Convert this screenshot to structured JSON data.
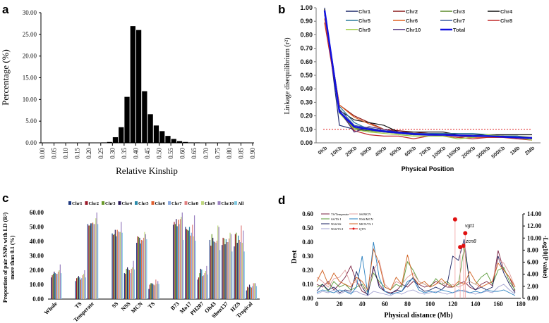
{
  "chart_data": [
    {
      "panel": "a",
      "type": "bar",
      "xlabel": "Relative Kinship",
      "ylabel": "Percentage (%)",
      "ylim": [
        0,
        30
      ],
      "yticks": [
        "0.00",
        "5.00",
        "10.00",
        "15.00",
        "20.00",
        "25.00",
        "30.00"
      ],
      "xticks": [
        "0.00",
        "0.05",
        "0.10",
        "0.15",
        "0.20",
        "0.25",
        "0.30",
        "0.35",
        "0.40",
        "0.45",
        "0.50",
        "0.55",
        "0.60",
        "0.65",
        "0.70",
        "0.75",
        "0.80",
        "0.85",
        "0.90"
      ],
      "bin_width": 0.025,
      "bins": [
        0.25,
        0.275,
        0.3,
        0.325,
        0.35,
        0.375,
        0.4,
        0.425,
        0.45,
        0.475,
        0.5,
        0.525,
        0.55,
        0.575,
        0.6,
        0.625,
        0.65
      ],
      "values": [
        0.1,
        0.2,
        1.3,
        3.6,
        10.6,
        26.9,
        26.0,
        11.9,
        6.6,
        4.0,
        2.7,
        1.6,
        0.9,
        0.4,
        0.2,
        0.1,
        0.1
      ]
    },
    {
      "panel": "b",
      "type": "line",
      "xlabel": "Physical Position",
      "ylabel": "Linkage disequilibrium (r²)",
      "ylim": [
        0,
        1
      ],
      "yticks": [
        "0.00",
        "0.10",
        "0.20",
        "0.30",
        "0.40",
        "0.50",
        "0.60",
        "0.70",
        "0.80",
        "0.90",
        "1.00"
      ],
      "categories": [
        "0Kb",
        "10Kb",
        "20Kb",
        "30Kb",
        "40Kb",
        "50Kb",
        "60Kb",
        "70Kb",
        "100Kb",
        "150Kb",
        "200Kb",
        "300Kb",
        "500Kb",
        "1Mb",
        "2Mb"
      ],
      "threshold": 0.1,
      "series": [
        {
          "name": "Chr1",
          "color": "#1f2a6b",
          "values": [
            1.0,
            0.13,
            0.1,
            0.09,
            0.08,
            0.07,
            0.06,
            0.06,
            0.06,
            0.05,
            0.05,
            0.05,
            0.05,
            0.04,
            0.04
          ]
        },
        {
          "name": "Chr2",
          "color": "#8b1a1a",
          "values": [
            0.95,
            0.28,
            0.2,
            0.15,
            0.1,
            0.09,
            0.08,
            0.07,
            0.07,
            0.06,
            0.05,
            0.05,
            0.05,
            0.04,
            0.03
          ]
        },
        {
          "name": "Chr3",
          "color": "#5a8a2a",
          "values": [
            0.96,
            0.22,
            0.11,
            0.09,
            0.08,
            0.07,
            0.06,
            0.06,
            0.05,
            0.04,
            0.05,
            0.05,
            0.05,
            0.05,
            0.04
          ]
        },
        {
          "name": "Chr4",
          "color": "#111111",
          "values": [
            0.99,
            0.24,
            0.17,
            0.15,
            0.13,
            0.08,
            0.08,
            0.08,
            0.08,
            0.06,
            0.06,
            0.06,
            0.06,
            0.06,
            0.06
          ]
        },
        {
          "name": "Chr5",
          "color": "#2a7a9a",
          "values": [
            0.97,
            0.27,
            0.15,
            0.1,
            0.09,
            0.08,
            0.07,
            0.07,
            0.07,
            0.07,
            0.07,
            0.06,
            0.05,
            0.05,
            0.03
          ]
        },
        {
          "name": "Chr6",
          "color": "#e06020",
          "values": [
            0.92,
            0.28,
            0.19,
            0.14,
            0.1,
            0.08,
            0.07,
            0.06,
            0.06,
            0.05,
            0.04,
            0.04,
            0.04,
            0.04,
            0.03
          ]
        },
        {
          "name": "Chr7",
          "color": "#3a5aa0",
          "values": [
            0.98,
            0.25,
            0.13,
            0.11,
            0.09,
            0.08,
            0.07,
            0.07,
            0.06,
            0.06,
            0.06,
            0.05,
            0.05,
            0.04,
            0.04
          ]
        },
        {
          "name": "Chr8",
          "color": "#c02828",
          "values": [
            0.89,
            0.24,
            0.09,
            0.06,
            0.05,
            0.05,
            0.03,
            0.05,
            0.05,
            0.04,
            0.03,
            0.04,
            0.04,
            0.03,
            0.02
          ]
        },
        {
          "name": "Chr9",
          "color": "#9acb3a",
          "values": [
            0.97,
            0.22,
            0.1,
            0.08,
            0.07,
            0.06,
            0.05,
            0.05,
            0.05,
            0.03,
            0.04,
            0.06,
            0.05,
            0.04,
            0.02
          ]
        },
        {
          "name": "Chr10",
          "color": "#4a2a7a",
          "values": [
            0.98,
            0.24,
            0.08,
            0.12,
            0.1,
            0.08,
            0.07,
            0.06,
            0.06,
            0.06,
            0.05,
            0.05,
            0.05,
            0.04,
            0.04
          ]
        },
        {
          "name": "Total",
          "color": "#1010e0",
          "values": [
            0.98,
            0.23,
            0.12,
            0.1,
            0.085,
            0.075,
            0.065,
            0.06,
            0.06,
            0.055,
            0.05,
            0.05,
            0.045,
            0.04,
            0.035
          ]
        }
      ]
    },
    {
      "panel": "c",
      "type": "bar",
      "ylabel_line1": "Proportion of pair SNPs with LD (R²)",
      "ylabel_line2": "more than 0.1 (%)",
      "ylim": [
        0,
        60
      ],
      "yticks": [
        "0.00",
        "10.00",
        "20.00",
        "30.00",
        "40.00",
        "50.00",
        "60.00"
      ],
      "categories": [
        "Whole",
        "TS",
        "Temperate",
        "SS",
        "NSS",
        "MCN",
        "TS",
        "B73",
        "Mo17",
        "PH207",
        "Oh43",
        "Shen137",
        "HZS",
        "Tropical"
      ],
      "series": [
        {
          "name": "Chr1",
          "color": "#1f3a80",
          "values": [
            15,
            12.5,
            52,
            45.5,
            18,
            39,
            7,
            51.5,
            50,
            13.5,
            41,
            37.5,
            36.5,
            6
          ]
        },
        {
          "name": "Chr2",
          "color": "#9a1a2a",
          "values": [
            16.5,
            14.5,
            51,
            44.5,
            17.5,
            43.5,
            10,
            53.5,
            48.5,
            15,
            37,
            42.5,
            45,
            8.5
          ]
        },
        {
          "name": "Chr3",
          "color": "#6a9a2a",
          "values": [
            17.5,
            15,
            51,
            45,
            21,
            43,
            11,
            52,
            48,
            18,
            45,
            42,
            46,
            8
          ]
        },
        {
          "name": "Chr4",
          "color": "#2a1a5a",
          "values": [
            19,
            16,
            52.5,
            48,
            22,
            42.5,
            11,
            55.5,
            47.5,
            21,
            42.5,
            38,
            39,
            10
          ]
        },
        {
          "name": "Chr5",
          "color": "#2a8aaa",
          "values": [
            18,
            15,
            52.5,
            43.5,
            20.5,
            38.5,
            10.5,
            50.5,
            50,
            20.5,
            40,
            41.5,
            44,
            8.5
          ]
        },
        {
          "name": "Chr6",
          "color": "#e06030",
          "values": [
            17.5,
            13.5,
            53,
            48,
            20,
            41,
            10,
            55,
            44,
            16,
            39.5,
            39.5,
            41,
            8
          ]
        },
        {
          "name": "Chr7",
          "color": "#8aaae0",
          "values": [
            17.5,
            14.5,
            52,
            47,
            18,
            40.5,
            9.5,
            52,
            46,
            16.5,
            39,
            39.5,
            39.5,
            9
          ]
        },
        {
          "name": "Chr8",
          "color": "#e08080",
          "values": [
            19,
            16.5,
            52,
            46.5,
            21,
            42.5,
            13.5,
            55.5,
            51.5,
            18,
            40.5,
            42,
            51,
            11
          ]
        },
        {
          "name": "Chr9",
          "color": "#c0d880",
          "values": [
            20,
            17.5,
            56,
            46.5,
            22,
            46.5,
            10.5,
            57,
            43.5,
            19.5,
            51,
            46,
            39,
            11
          ]
        },
        {
          "name": "Chr10",
          "color": "#9a80c0",
          "values": [
            24,
            20,
            60,
            53.5,
            26.5,
            45,
            12.5,
            60,
            58,
            23,
            50,
            45,
            47.5,
            11
          ]
        },
        {
          "name": "All",
          "color": "#80c8e0",
          "values": [
            18,
            15,
            52,
            46,
            20.5,
            41.5,
            10.5,
            41,
            40.5,
            17,
            34,
            33,
            33,
            9
          ]
        }
      ]
    },
    {
      "panel": "d",
      "type": "line",
      "xlabel": "Physical distance (Mb)",
      "ylabel_left": "Dest",
      "ylabel_right": "-Log10(P value)",
      "xlim": [
        0,
        180
      ],
      "ylim_left": [
        0,
        0.6
      ],
      "ylim_right": [
        0,
        14
      ],
      "xticks": [
        "0",
        "20",
        "40",
        "60",
        "80",
        "100",
        "120",
        "140",
        "160",
        "180"
      ],
      "yticks_left": [
        "0.00",
        "0.10",
        "0.20",
        "0.30",
        "0.40",
        "0.50",
        "0.60"
      ],
      "yticks_right": [
        "0.00",
        "2.00",
        "4.00",
        "6.00",
        "8.00",
        "10.00",
        "12.00",
        "14.00"
      ],
      "x": [
        0,
        5,
        10,
        15,
        20,
        25,
        30,
        35,
        40,
        45,
        50,
        55,
        60,
        65,
        70,
        75,
        80,
        85,
        90,
        95,
        100,
        105,
        110,
        115,
        120,
        125,
        130,
        135,
        140,
        145,
        150,
        155,
        160,
        165,
        170,
        175
      ],
      "series": [
        {
          "name": "TS/Temperate",
          "color": "#7a2040",
          "values": [
            0.1,
            0.08,
            0.12,
            0.06,
            0.1,
            0.15,
            0.23,
            0.12,
            0.05,
            0.03,
            0.22,
            0.1,
            0.05,
            0.04,
            0.05,
            0.1,
            0.08,
            0.12,
            0.1,
            0.08,
            0.09,
            0.12,
            0.1,
            0.08,
            0.08,
            0.1,
            0.12,
            0.08,
            0.06,
            0.1,
            0.12,
            0.09,
            0.34,
            0.2,
            0.15,
            0.05
          ]
        },
        {
          "name": "SS/TS I",
          "color": "#5a9a3a",
          "values": [
            0.08,
            0.1,
            0.05,
            0.12,
            0.08,
            0.1,
            0.06,
            0.08,
            0.1,
            0.04,
            0.18,
            0.12,
            0.08,
            0.06,
            0.1,
            0.08,
            0.26,
            0.2,
            0.12,
            0.1,
            0.08,
            0.14,
            0.1,
            0.12,
            0.08,
            0.1,
            0.36,
            0.12,
            0.1,
            0.15,
            0.18,
            0.1,
            0.2,
            0.22,
            0.12,
            0.06
          ]
        },
        {
          "name": "NSS/SS",
          "color": "#1a2060",
          "values": [
            0.05,
            0.1,
            0.06,
            0.08,
            0.04,
            0.06,
            0.05,
            0.19,
            0.08,
            0.02,
            0.23,
            0.08,
            0.05,
            0.03,
            0.06,
            0.05,
            0.1,
            0.15,
            0.08,
            0.05,
            0.06,
            0.08,
            0.06,
            0.1,
            0.3,
            0.27,
            0.42,
            0.1,
            0.06,
            0.08,
            0.06,
            0.08,
            0.3,
            0.18,
            0.1,
            0.04
          ]
        },
        {
          "name": "NSS/TS I",
          "color": "#a0a0d0",
          "values": [
            0.03,
            0.05,
            0.04,
            0.06,
            0.03,
            0.05,
            0.04,
            0.05,
            0.03,
            0.02,
            0.05,
            0.04,
            0.03,
            0.02,
            0.04,
            0.03,
            0.05,
            0.06,
            0.04,
            0.03,
            0.04,
            0.05,
            0.04,
            0.03,
            0.04,
            0.05,
            0.06,
            0.04,
            0.03,
            0.04,
            0.05,
            0.04,
            0.08,
            0.1,
            0.06,
            0.03
          ]
        },
        {
          "name": "SS/MCN",
          "color": "#e0a0a0",
          "values": [
            0.15,
            0.12,
            0.08,
            0.14,
            0.15,
            0.2,
            0.1,
            0.12,
            0.08,
            0.05,
            0.2,
            0.27,
            0.1,
            0.06,
            0.12,
            0.1,
            0.15,
            0.18,
            0.12,
            0.1,
            0.08,
            0.1,
            0.12,
            0.08,
            0.1,
            0.08,
            0.1,
            0.12,
            0.1,
            0.08,
            0.1,
            0.12,
            0.28,
            0.25,
            0.18,
            0.08
          ]
        },
        {
          "name": "NSS/MCN",
          "color": "#2a80c0",
          "values": [
            0.04,
            0.06,
            0.05,
            0.04,
            0.06,
            0.05,
            0.03,
            0.08,
            0.3,
            0.03,
            0.4,
            0.15,
            0.05,
            0.03,
            0.04,
            0.05,
            0.12,
            0.14,
            0.06,
            0.04,
            0.05,
            0.04,
            0.06,
            0.05,
            0.04,
            0.06,
            0.05,
            0.04,
            0.05,
            0.04,
            0.06,
            0.05,
            0.05,
            0.06,
            0.04,
            0.02
          ]
        },
        {
          "name": "MCN/TS I",
          "color": "#d06020",
          "values": [
            0.12,
            0.2,
            0.1,
            0.18,
            0.12,
            0.1,
            0.08,
            0.15,
            0.12,
            0.06,
            0.35,
            0.25,
            0.08,
            0.06,
            0.15,
            0.1,
            0.31,
            0.15,
            0.1,
            0.12,
            0.08,
            0.1,
            0.14,
            0.1,
            0.08,
            0.12,
            0.1,
            0.19,
            0.12,
            0.08,
            0.1,
            0.12,
            0.25,
            0.2,
            0.15,
            0.08
          ]
        }
      ],
      "qtn": {
        "name": "QTN",
        "color": "#e01010",
        "x": [
          122,
          126.5,
          129.5,
          131
        ],
        "values": [
          13.1,
          8.5,
          8.7,
          10.8
        ]
      },
      "annotations": [
        "zcn8",
        "vgt1"
      ]
    }
  ],
  "panel_labels": [
    "a",
    "b",
    "c",
    "d"
  ]
}
